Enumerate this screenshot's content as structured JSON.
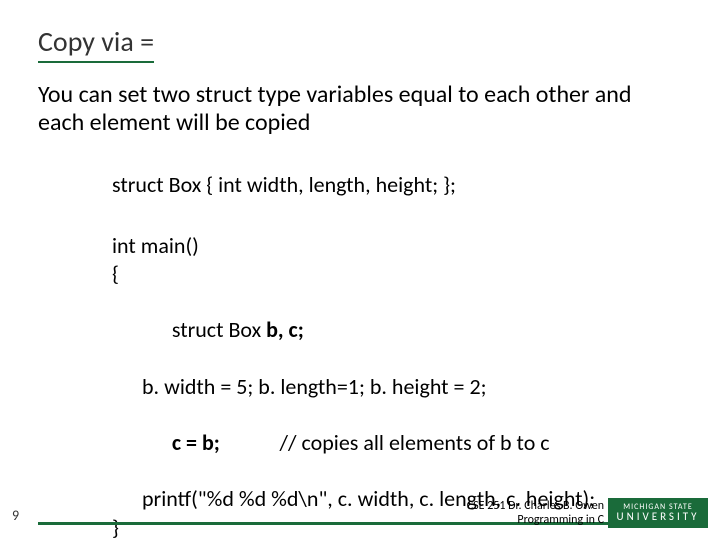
{
  "colors": {
    "title_underline": "#1a6b3a",
    "footer_line": "#1a6b3a",
    "msu_bg": "#1a6b3a",
    "msu_text": "#ffffff",
    "title_text": "#333333",
    "body_text": "#000000",
    "background": "#ffffff"
  },
  "typography": {
    "title_fontsize": 28,
    "subtitle_fontsize": 24,
    "code_fontsize": 22,
    "credits_fontsize": 12,
    "pagenum_fontsize": 14
  },
  "title": "Copy via =",
  "subtitle": "You can set two struct type variables equal to each other and each element will be copied",
  "code1": "struct Box { int width, length, height; };",
  "code2": {
    "l1": "int main()",
    "l2": "{",
    "l3a": "struct Box ",
    "l3b": "b, c;",
    "l4": "b. width = 5; b. length=1; b. height = 2;",
    "l5a": "c = b;",
    "l5b": "            // copies all elements of b to c",
    "l6": "printf(\"%d %d %d\\n\", c. width, c. length, c. height);",
    "l7": "}"
  },
  "footer": {
    "page": "9",
    "credit1": "CSE 251 Dr. Charles B. Owen",
    "credit2": "Programming in C",
    "msu1": "MICHIGAN STATE",
    "msu2": "UNIVERSITY"
  }
}
